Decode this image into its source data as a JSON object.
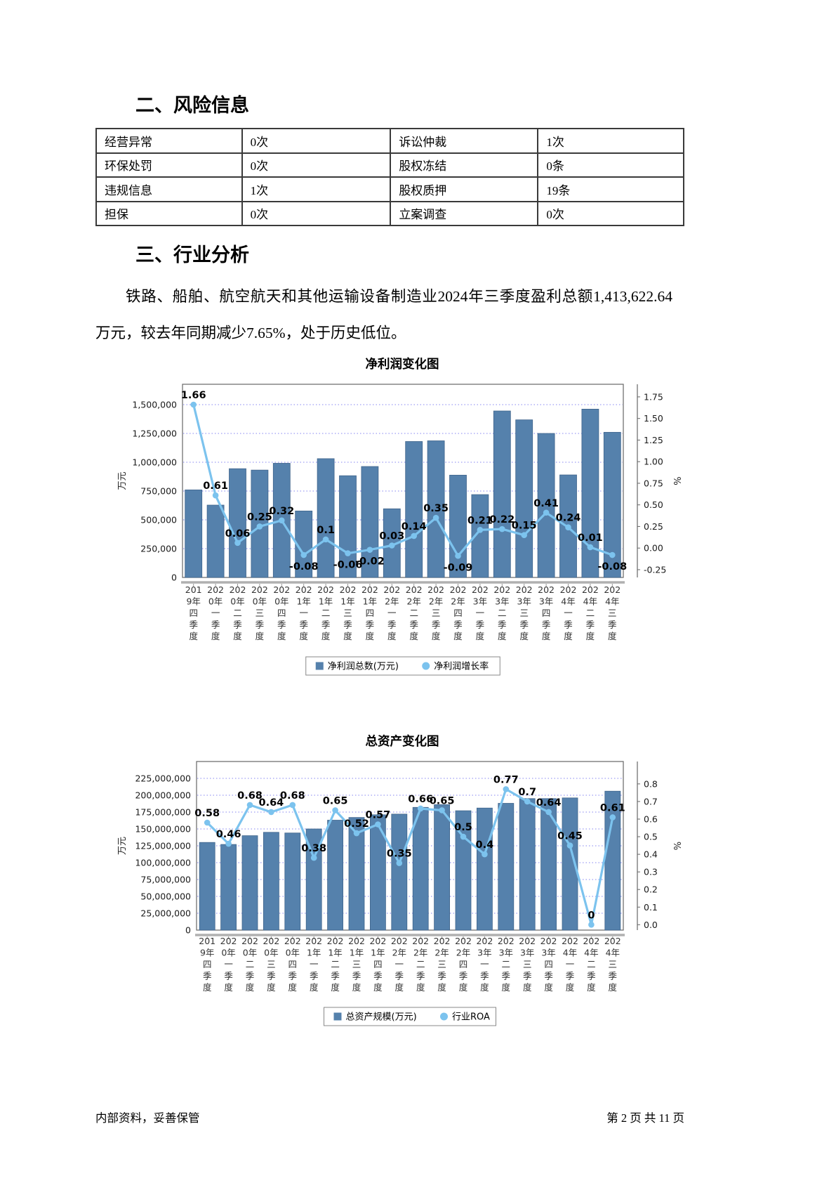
{
  "page": {
    "footer_left": "内部资料，妥善保管",
    "footer_right": "第 2 页  共 11 页"
  },
  "risk_section": {
    "heading": "二、风险信息",
    "table": {
      "rows": [
        [
          "经营异常",
          "0次",
          "诉讼仲裁",
          "1次"
        ],
        [
          "环保处罚",
          "0次",
          "股权冻结",
          "0条"
        ],
        [
          "违规信息",
          "1次",
          "股权质押",
          "19条"
        ],
        [
          "担保",
          "0次",
          "立案调查",
          "0次"
        ]
      ]
    }
  },
  "industry_section": {
    "heading": "三、行业分析",
    "paragraph": "铁路、船舶、航空航天和其他运输设备制造业2024年三季度盈利总额1,413,622.64万元，较去年同期减少7.65%，处于历史低位。"
  },
  "chart_data": [
    {
      "type": "bar",
      "title": "净利润变化图",
      "categories": [
        "2019年四季度",
        "2020年一季度",
        "2020年二季度",
        "2020年三季度",
        "2020年四季度",
        "2021年一季度",
        "2021年二季度",
        "2021年三季度",
        "2021年四季度",
        "2022年一季度",
        "2022年二季度",
        "2022年三季度",
        "2022年四季度",
        "2023年一季度",
        "2023年二季度",
        "2023年三季度",
        "2023年四季度",
        "2024年一季度",
        "2024年二季度",
        "2024年三季度"
      ],
      "series": [
        {
          "name": "净利润总数(万元)",
          "type": "bar",
          "axis": "left",
          "color": "#5581ac",
          "values": [
            760000,
            628000,
            944000,
            932000,
            991000,
            577000,
            1031000,
            883000,
            963000,
            596000,
            1180000,
            1186000,
            888000,
            719000,
            1445000,
            1368000,
            1250000,
            890000,
            1461000,
            1260000
          ]
        },
        {
          "name": "净利润增长率",
          "type": "line",
          "axis": "right",
          "color": "#7cc3ee",
          "values": [
            1.66,
            0.61,
            0.06,
            0.25,
            0.32,
            -0.08,
            0.1,
            -0.06,
            -0.02,
            0.03,
            0.14,
            0.35,
            -0.09,
            0.21,
            0.22,
            0.15,
            0.41,
            0.24,
            0.01,
            -0.08
          ]
        }
      ],
      "ylabel_left": "万元",
      "ylabel_right": "%",
      "left_axis": {
        "min": 0,
        "max": 1500000,
        "step": 250000
      },
      "right_axis": {
        "min": -0.25,
        "max": 1.75,
        "step": 0.25
      },
      "grid": "dotted",
      "legend_position": "bottom"
    },
    {
      "type": "bar",
      "title": "总资产变化图",
      "categories": [
        "2019年四季度",
        "2020年一季度",
        "2020年二季度",
        "2020年三季度",
        "2020年四季度",
        "2021年一季度",
        "2021年二季度",
        "2021年三季度",
        "2021年四季度",
        "2022年一季度",
        "2022年二季度",
        "2022年三季度",
        "2022年四季度",
        "2023年一季度",
        "2023年二季度",
        "2023年三季度",
        "2023年四季度",
        "2024年一季度",
        "2024年二季度",
        "2024年三季度"
      ],
      "series": [
        {
          "name": "总资产规模(万元)",
          "type": "bar",
          "axis": "left",
          "color": "#5581ac",
          "values": [
            130000000,
            127000000,
            140000000,
            145000000,
            144000000,
            150000000,
            163000000,
            167000000,
            171000000,
            172000000,
            182000000,
            186000000,
            177000000,
            181000000,
            188000000,
            195000000,
            195000000,
            196000000,
            0,
            206000000
          ]
        },
        {
          "name": "行业ROA",
          "type": "line",
          "axis": "right",
          "color": "#7cc3ee",
          "values": [
            0.58,
            0.46,
            0.68,
            0.64,
            0.68,
            0.38,
            0.65,
            0.52,
            0.57,
            0.35,
            0.66,
            0.65,
            0.5,
            0.4,
            0.77,
            0.7,
            0.64,
            0.45,
            0,
            0.61
          ]
        }
      ],
      "ylabel_left": "万元",
      "ylabel_right": "%",
      "left_axis": {
        "min": 0,
        "max": 225000000,
        "step": 25000000
      },
      "right_axis": {
        "min": 0.0,
        "max": 0.8,
        "step": 0.1
      },
      "grid": "dotted",
      "legend_position": "bottom"
    }
  ]
}
